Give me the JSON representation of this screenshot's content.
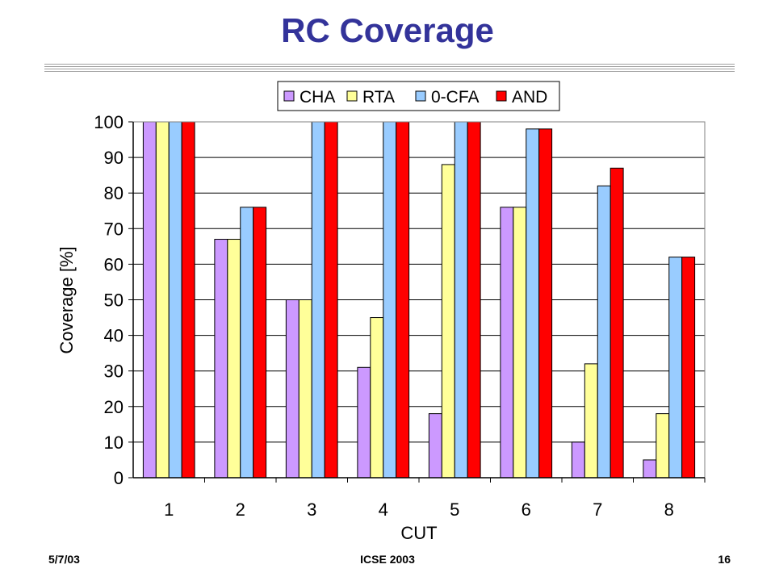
{
  "title": "RC Coverage",
  "footer": {
    "date": "5/7/03",
    "venue": "ICSE 2003",
    "page_number": "16"
  },
  "chart_data": {
    "type": "bar",
    "title": "",
    "xlabel": "CUT",
    "ylabel": "Coverage [%]",
    "ylim": [
      0,
      100
    ],
    "yticks": [
      0,
      10,
      20,
      30,
      40,
      50,
      60,
      70,
      80,
      90,
      100
    ],
    "categories": [
      "1",
      "2",
      "3",
      "4",
      "5",
      "6",
      "7",
      "8"
    ],
    "grid": "horizontal",
    "legend_position": "top",
    "series": [
      {
        "name": "CHA",
        "color": "#cc99ff",
        "values": [
          100,
          67,
          50,
          31,
          18,
          76,
          10,
          5
        ]
      },
      {
        "name": "RTA",
        "color": "#ffff99",
        "values": [
          100,
          67,
          50,
          45,
          88,
          76,
          32,
          18
        ]
      },
      {
        "name": "0-CFA",
        "color": "#99ccff",
        "values": [
          100,
          76,
          100,
          100,
          100,
          98,
          82,
          62
        ]
      },
      {
        "name": "AND",
        "color": "#ff0000",
        "values": [
          100,
          76,
          100,
          100,
          100,
          98,
          87,
          62
        ]
      }
    ]
  }
}
